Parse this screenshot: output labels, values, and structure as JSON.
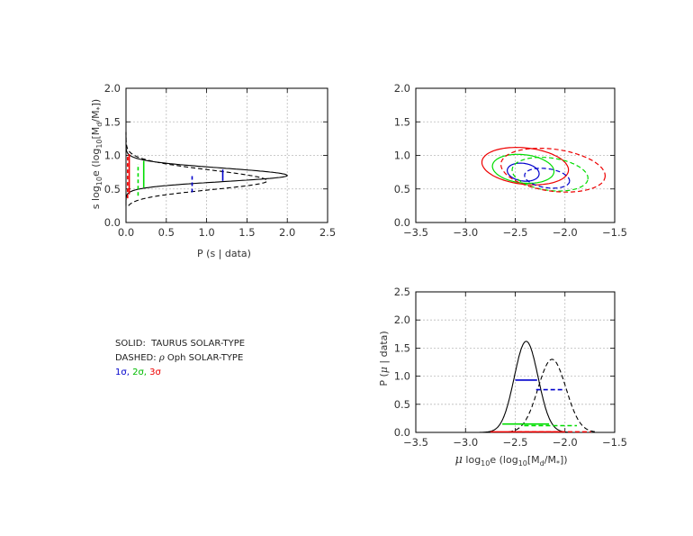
{
  "colors": {
    "one_sigma": "#0000cc",
    "two_sigma": "#00dd00",
    "three_sigma": "#ee0000",
    "curve": "#000000",
    "grid": "#bbbbbb"
  },
  "legend": {
    "solid_prefix": "SOLID:",
    "solid_text": "TAURUS SOLAR-TYPE",
    "dashed_prefix": "DASHED:",
    "dashed_rho": "ρ",
    "dashed_text": "Oph SOLAR-TYPE",
    "sig1": "1σ,",
    "sig2": "2σ,",
    "sig3": "3σ"
  },
  "chart_data": [
    {
      "type": "line",
      "panel": "top-left",
      "orientation": "horizontal density",
      "xlabel": "P (s | data)",
      "ylabel": "s log10e (log10[Md/M*])",
      "xlim": [
        0.0,
        2.5
      ],
      "ylim": [
        0.0,
        2.0
      ],
      "xticks": [
        "0.0",
        "0.5",
        "1.0",
        "1.5",
        "2.0",
        "2.5"
      ],
      "yticks": [
        "0.0",
        "0.5",
        "1.0",
        "1.5",
        "2.0"
      ],
      "grid": true,
      "series": [
        {
          "style": "solid",
          "peak_s": 0.7,
          "peak_p": 2.0,
          "width_low": 0.09,
          "width_high": 0.11
        },
        {
          "style": "dashed",
          "peak_s": 0.62,
          "peak_p": 1.75,
          "width_low": 0.13,
          "width_high": 0.16
        }
      ],
      "intervals": [
        {
          "sigma": 1,
          "style": "solid",
          "p": 1.2,
          "s": [
            0.62,
            0.79
          ]
        },
        {
          "sigma": 2,
          "style": "solid",
          "p": 0.22,
          "s": [
            0.52,
            0.92
          ]
        },
        {
          "sigma": 3,
          "style": "solid",
          "p": 0.04,
          "s": [
            0.42,
            1.02
          ]
        },
        {
          "sigma": 1,
          "style": "dashed",
          "p": 0.82,
          "s": [
            0.45,
            0.72
          ]
        },
        {
          "sigma": 2,
          "style": "dashed",
          "p": 0.15,
          "s": [
            0.4,
            0.87
          ]
        },
        {
          "sigma": 3,
          "style": "dashed",
          "p": 0.02,
          "s": [
            0.36,
            1.02
          ]
        }
      ]
    },
    {
      "type": "contour",
      "panel": "top-right",
      "xlim": [
        -3.5,
        -1.5
      ],
      "ylim": [
        0.0,
        2.0
      ],
      "xticks": [
        "−3.5",
        "−3.0",
        "−2.5",
        "−2.0",
        "−1.5"
      ],
      "yticks": [
        "0.0",
        "0.5",
        "1.0",
        "1.5",
        "2.0"
      ],
      "grid": true,
      "ellipses": [
        {
          "sigma": 1,
          "style": "solid",
          "cx": -2.42,
          "cy": 0.75,
          "rx": 0.17,
          "ry": 0.13,
          "tilt": -20
        },
        {
          "sigma": 2,
          "style": "solid",
          "cx": -2.42,
          "cy": 0.8,
          "rx": 0.32,
          "ry": 0.21,
          "tilt": -15
        },
        {
          "sigma": 3,
          "style": "solid",
          "cx": -2.4,
          "cy": 0.84,
          "rx": 0.45,
          "ry": 0.27,
          "tilt": -15
        },
        {
          "sigma": 1,
          "style": "dashed",
          "cx": -2.18,
          "cy": 0.66,
          "rx": 0.24,
          "ry": 0.14,
          "tilt": -20
        },
        {
          "sigma": 2,
          "style": "dashed",
          "cx": -2.15,
          "cy": 0.72,
          "rx": 0.4,
          "ry": 0.24,
          "tilt": -18
        },
        {
          "sigma": 3,
          "style": "dashed",
          "cx": -2.12,
          "cy": 0.78,
          "rx": 0.55,
          "ry": 0.31,
          "tilt": -18
        }
      ]
    },
    {
      "type": "line",
      "panel": "bottom-right",
      "xlabel": "μ log10e (log10[Md/M*])",
      "ylabel": "P (μ | data)",
      "xlim": [
        -3.5,
        -1.5
      ],
      "ylim": [
        0.0,
        2.5
      ],
      "xticks": [
        "−3.5",
        "−3.0",
        "−2.5",
        "−2.0",
        "−1.5"
      ],
      "yticks": [
        "0.0",
        "0.5",
        "1.0",
        "1.5",
        "2.0",
        "2.5"
      ],
      "grid": true,
      "series": [
        {
          "style": "solid",
          "mean": -2.39,
          "sd": 0.12,
          "peak": 1.62
        },
        {
          "style": "dashed",
          "mean": -2.13,
          "sd": 0.14,
          "peak": 1.3
        }
      ],
      "intervals": [
        {
          "sigma": 1,
          "style": "solid",
          "y": 0.93,
          "x": [
            -2.5,
            -2.28
          ]
        },
        {
          "sigma": 2,
          "style": "solid",
          "y": 0.15,
          "x": [
            -2.63,
            -2.16
          ]
        },
        {
          "sigma": 3,
          "style": "solid",
          "y": 0.01,
          "x": [
            -2.75,
            -2.04
          ]
        },
        {
          "sigma": 1,
          "style": "dashed",
          "y": 0.76,
          "x": [
            -2.29,
            -2.0
          ]
        },
        {
          "sigma": 2,
          "style": "dashed",
          "y": 0.12,
          "x": [
            -2.41,
            -1.88
          ]
        },
        {
          "sigma": 3,
          "style": "dashed",
          "y": 0.01,
          "x": [
            -2.55,
            -1.74
          ]
        }
      ]
    }
  ]
}
